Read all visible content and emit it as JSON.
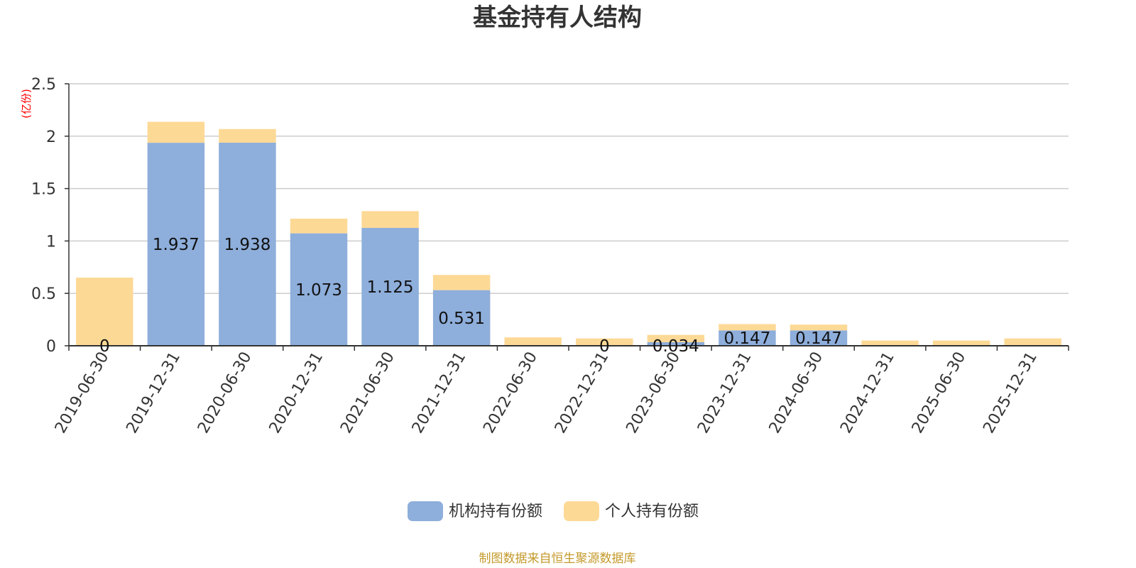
{
  "chart_data": {
    "type": "bar",
    "stacked": true,
    "title": "基金持有人结构",
    "y_unit": "(亿份)",
    "categories": [
      "2019-06-30",
      "2019-12-31",
      "2020-06-30",
      "2020-12-31",
      "2021-06-30",
      "2021-12-31",
      "2022-06-30",
      "2022-12-31",
      "2023-06-30",
      "2023-12-31",
      "2024-06-30",
      "2024-12-31",
      "2025-06-30",
      "2025-12-31"
    ],
    "ylim": [
      0,
      2.5
    ],
    "yticks": [
      "0",
      "0.5",
      "1",
      "1.5",
      "2",
      "2.5"
    ],
    "grid": true,
    "legend_position": "bottom",
    "series": [
      {
        "name": "机构持有份额",
        "color": "#8eaedb",
        "values": [
          0,
          1.937,
          1.938,
          1.073,
          1.125,
          0.531,
          0,
          0,
          0.034,
          0.147,
          0.147,
          0,
          0,
          0
        ],
        "labels": [
          "0",
          "1.937",
          "1.938",
          "1.073",
          "1.125",
          "0.531",
          "",
          "0",
          "0.034",
          "0.147",
          "0.147",
          "",
          "",
          ""
        ]
      },
      {
        "name": "个人持有份额",
        "color": "#fdd996",
        "values": [
          0.65,
          0.2,
          0.13,
          0.14,
          0.16,
          0.145,
          0.08,
          0.07,
          0.07,
          0.06,
          0.055,
          0.05,
          0.05,
          0.07
        ],
        "labels": []
      }
    ]
  },
  "source": "制图数据来自恒生聚源数据库"
}
